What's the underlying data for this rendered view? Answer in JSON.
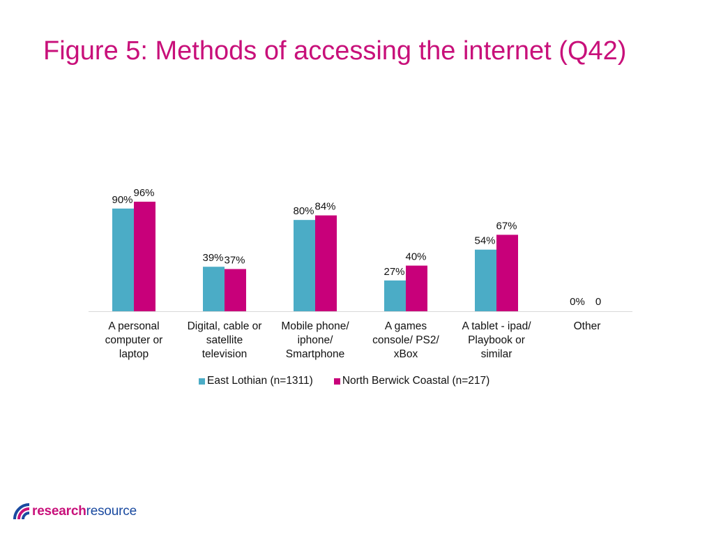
{
  "title": "Figure 5: Methods of accessing the internet (Q42)",
  "chart_data": {
    "type": "bar",
    "categories": [
      [
        "A personal",
        "computer or",
        "laptop"
      ],
      [
        "Digital, cable or",
        "satellite",
        "television"
      ],
      [
        "Mobile phone/",
        "iphone/",
        "Smartphone"
      ],
      [
        "A games",
        "console/ PS2/",
        "xBox"
      ],
      [
        "A tablet - ipad/",
        "Playbook or",
        "similar"
      ],
      [
        "Other"
      ]
    ],
    "series": [
      {
        "name": "East Lothian (n=1311)",
        "color": "#4bacc6",
        "values": [
          90,
          39,
          80,
          27,
          54,
          0
        ],
        "labels": [
          "90%",
          "39%",
          "80%",
          "27%",
          "54%",
          "0%"
        ]
      },
      {
        "name": "North Berwick Coastal (n=217)",
        "color": "#c8007a",
        "values": [
          96,
          37,
          84,
          40,
          67,
          0
        ],
        "labels": [
          "96%",
          "37%",
          "84%",
          "40%",
          "67%",
          "0"
        ]
      }
    ],
    "ylim": [
      0,
      108
    ],
    "legend_position": "bottom",
    "xlabel": "",
    "ylabel": ""
  },
  "logo": {
    "part1": "research",
    "part2": "resource"
  }
}
